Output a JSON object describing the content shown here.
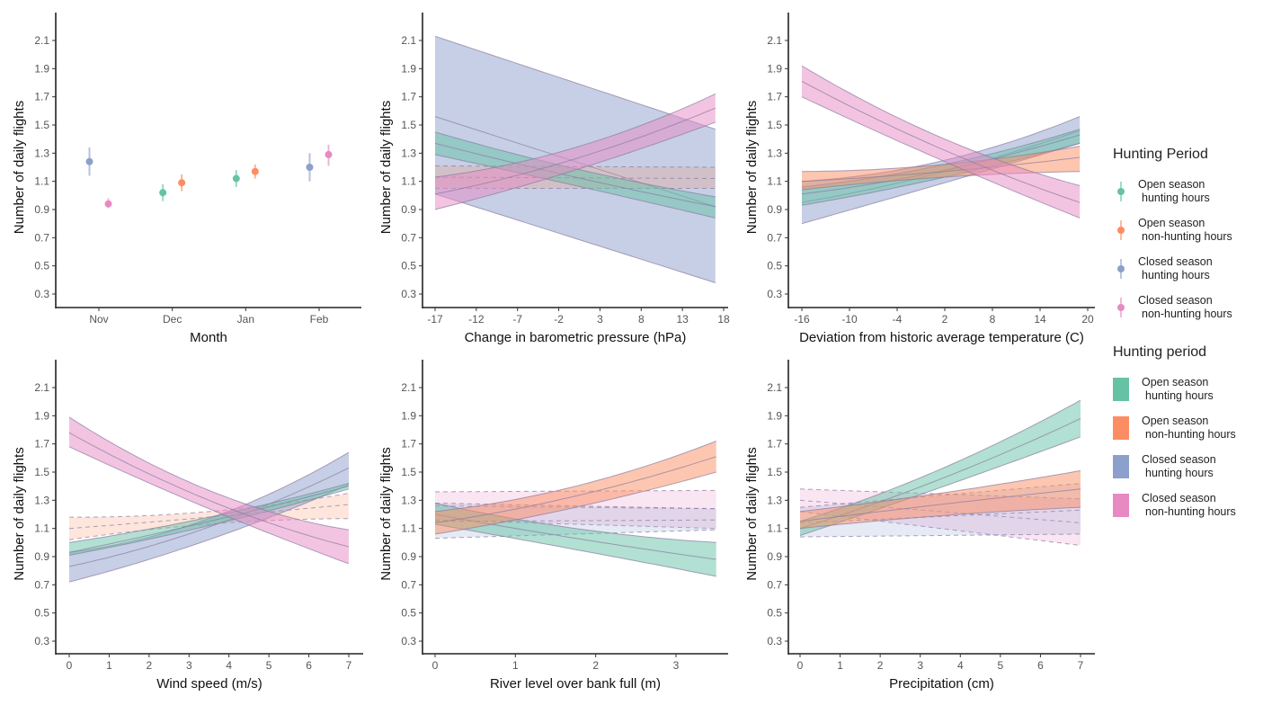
{
  "colors": {
    "open_hunting": "#66c2a5",
    "open_nonhunting": "#fc8d62",
    "closed_hunting": "#8da0cb",
    "closed_nonhunting": "#e78ac3"
  },
  "legends": [
    {
      "title": "Hunting Period",
      "kind": "pointrange",
      "items": [
        {
          "key": "open_hunting",
          "line1": "Open season",
          "line2": "hunting hours"
        },
        {
          "key": "open_nonhunting",
          "line1": "Open season",
          "line2": "non-hunting hours"
        },
        {
          "key": "closed_hunting",
          "line1": "Closed season",
          "line2": "hunting hours"
        },
        {
          "key": "closed_nonhunting",
          "line1": "Closed season",
          "line2": "non-hunting hours"
        }
      ]
    },
    {
      "title": "Hunting period",
      "kind": "fill",
      "items": [
        {
          "key": "open_hunting",
          "line1": "Open season",
          "line2": "hunting hours"
        },
        {
          "key": "open_nonhunting",
          "line1": "Open season",
          "line2": "non-hunting hours"
        },
        {
          "key": "closed_hunting",
          "line1": "Closed season",
          "line2": "hunting hours"
        },
        {
          "key": "closed_nonhunting",
          "line1": "Closed season",
          "line2": "non-hunting hours"
        }
      ]
    }
  ],
  "chart_data": [
    {
      "type": "scatter",
      "xlabel": "Month",
      "ylabel": "Number of daily flights",
      "categories": [
        "Nov",
        "Dec",
        "Jan",
        "Feb"
      ],
      "yticks": [
        "0.3",
        "0.5",
        "0.7",
        "0.9",
        "1.1",
        "1.3",
        "1.5",
        "1.7",
        "1.9",
        "2.1"
      ],
      "points": [
        {
          "category": "Nov",
          "series": "closed_hunting",
          "offset": -1,
          "y": 1.24,
          "lower": 1.14,
          "upper": 1.34
        },
        {
          "category": "Nov",
          "series": "closed_nonhunting",
          "offset": 1,
          "y": 0.94,
          "lower": 0.91,
          "upper": 0.98
        },
        {
          "category": "Dec",
          "series": "open_hunting",
          "offset": -1,
          "y": 1.02,
          "lower": 0.96,
          "upper": 1.08
        },
        {
          "category": "Dec",
          "series": "open_nonhunting",
          "offset": 1,
          "y": 1.09,
          "lower": 1.03,
          "upper": 1.15
        },
        {
          "category": "Jan",
          "series": "open_hunting",
          "offset": -1,
          "y": 1.12,
          "lower": 1.06,
          "upper": 1.18
        },
        {
          "category": "Jan",
          "series": "open_nonhunting",
          "offset": 1,
          "y": 1.17,
          "lower": 1.12,
          "upper": 1.22
        },
        {
          "category": "Feb",
          "series": "closed_hunting",
          "offset": -1,
          "y": 1.2,
          "lower": 1.1,
          "upper": 1.3
        },
        {
          "category": "Feb",
          "series": "closed_nonhunting",
          "offset": 1,
          "y": 1.29,
          "lower": 1.21,
          "upper": 1.36
        }
      ]
    },
    {
      "type": "line",
      "xlabel": "Change in barometric pressure (hPa)",
      "ylabel": "Number of daily flights",
      "xticks": [
        "-17",
        "-12",
        "-7",
        "-2",
        "3",
        "8",
        "13",
        "18"
      ],
      "yticks": [
        "0.3",
        "0.5",
        "0.7",
        "0.9",
        "1.1",
        "1.3",
        "1.5",
        "1.7",
        "1.9",
        "2.1"
      ],
      "series": [
        {
          "key": "closed_hunting",
          "significant": true,
          "x": [
            -17,
            17
          ],
          "mean": [
            1.56,
            0.92
          ],
          "lower": [
            1.01,
            0.38
          ],
          "upper": [
            2.13,
            1.47
          ]
        },
        {
          "key": "open_nonhunting",
          "significant": false,
          "x": [
            -17,
            17
          ],
          "mean": [
            1.13,
            1.12
          ],
          "lower": [
            1.05,
            1.05
          ],
          "upper": [
            1.21,
            1.2
          ]
        },
        {
          "key": "open_hunting",
          "significant": true,
          "x": [
            -17,
            0,
            17
          ],
          "mean": [
            1.37,
            1.13,
            0.92
          ],
          "lower": [
            1.29,
            1.07,
            0.84
          ],
          "upper": [
            1.45,
            1.19,
            0.99
          ]
        },
        {
          "key": "closed_nonhunting",
          "significant": true,
          "x": [
            -17,
            0,
            17
          ],
          "mean": [
            1.01,
            1.26,
            1.62
          ],
          "lower": [
            0.9,
            1.18,
            1.52
          ],
          "upper": [
            1.13,
            1.34,
            1.72
          ]
        }
      ]
    },
    {
      "type": "line",
      "xlabel": "Deviation from historic average temperature (C)",
      "ylabel": "Number of daily flights",
      "xticks": [
        "-16",
        "-10",
        "-4",
        "2",
        "8",
        "14",
        "20"
      ],
      "yticks": [
        "0.3",
        "0.5",
        "0.7",
        "0.9",
        "1.1",
        "1.3",
        "1.5",
        "1.7",
        "1.9",
        "2.1"
      ],
      "series": [
        {
          "key": "closed_hunting",
          "significant": true,
          "x": [
            -16,
            2,
            19
          ],
          "mean": [
            0.95,
            1.17,
            1.46
          ],
          "lower": [
            0.8,
            1.09,
            1.37
          ],
          "upper": [
            1.1,
            1.25,
            1.56
          ]
        },
        {
          "key": "open_hunting",
          "significant": true,
          "x": [
            -16,
            2,
            19
          ],
          "mean": [
            1.01,
            1.18,
            1.43
          ],
          "lower": [
            0.93,
            1.13,
            1.37
          ],
          "upper": [
            1.06,
            1.22,
            1.47
          ]
        },
        {
          "key": "open_nonhunting",
          "significant": true,
          "x": [
            -16,
            2,
            19
          ],
          "mean": [
            1.1,
            1.17,
            1.27
          ],
          "lower": [
            1.04,
            1.13,
            1.17
          ],
          "upper": [
            1.17,
            1.22,
            1.35
          ]
        },
        {
          "key": "closed_nonhunting",
          "significant": true,
          "x": [
            -16,
            2,
            19
          ],
          "mean": [
            1.81,
            1.32,
            0.95
          ],
          "lower": [
            1.7,
            1.24,
            0.84
          ],
          "upper": [
            1.92,
            1.4,
            1.07
          ]
        }
      ]
    },
    {
      "type": "line",
      "xlabel": "Wind speed (m/s)",
      "ylabel": "Number of daily flights",
      "xticks": [
        "0",
        "1",
        "2",
        "3",
        "4",
        "5",
        "6",
        "7"
      ],
      "yticks": [
        "0.3",
        "0.5",
        "0.7",
        "0.9",
        "1.1",
        "1.3",
        "1.5",
        "1.7",
        "1.9",
        "2.1"
      ],
      "series": [
        {
          "key": "open_nonhunting",
          "significant": false,
          "x": [
            0,
            3.5,
            7
          ],
          "mean": [
            1.1,
            1.18,
            1.27
          ],
          "lower": [
            1.02,
            1.13,
            1.17
          ],
          "upper": [
            1.18,
            1.22,
            1.35
          ]
        },
        {
          "key": "closed_hunting",
          "significant": true,
          "x": [
            0,
            3.5,
            7
          ],
          "mean": [
            0.83,
            1.11,
            1.53
          ],
          "lower": [
            0.72,
            1.02,
            1.41
          ],
          "upper": [
            0.93,
            1.17,
            1.64
          ]
        },
        {
          "key": "open_hunting",
          "significant": true,
          "x": [
            0,
            3.5,
            7
          ],
          "mean": [
            0.93,
            1.15,
            1.4
          ],
          "lower": [
            0.91,
            1.12,
            1.38
          ],
          "upper": [
            1.0,
            1.18,
            1.42
          ]
        },
        {
          "key": "closed_nonhunting",
          "significant": true,
          "x": [
            0,
            3.5,
            7
          ],
          "mean": [
            1.78,
            1.3,
            0.97
          ],
          "lower": [
            1.68,
            1.24,
            0.85
          ],
          "upper": [
            1.89,
            1.37,
            1.09
          ]
        }
      ]
    },
    {
      "type": "line",
      "xlabel": "River level over bank full (m)",
      "ylabel": "Number of daily flights",
      "xticks": [
        "0",
        "1",
        "2",
        "3"
      ],
      "yticks": [
        "0.3",
        "0.5",
        "0.7",
        "0.9",
        "1.1",
        "1.3",
        "1.5",
        "1.7",
        "1.9",
        "2.1"
      ],
      "series": [
        {
          "key": "closed_nonhunting",
          "significant": false,
          "x": [
            0,
            3.5
          ],
          "mean": [
            1.26,
            1.24
          ],
          "lower": [
            1.16,
            1.1
          ],
          "upper": [
            1.36,
            1.37
          ]
        },
        {
          "key": "closed_hunting",
          "significant": false,
          "x": [
            0,
            3.5
          ],
          "mean": [
            1.15,
            1.16
          ],
          "lower": [
            1.03,
            1.09
          ],
          "upper": [
            1.28,
            1.24
          ]
        },
        {
          "key": "open_hunting",
          "significant": true,
          "x": [
            0,
            1.75,
            3.5
          ],
          "mean": [
            1.2,
            1.03,
            0.88
          ],
          "lower": [
            1.13,
            0.95,
            0.76
          ],
          "upper": [
            1.28,
            1.1,
            1.0
          ]
        },
        {
          "key": "open_nonhunting",
          "significant": true,
          "x": [
            0,
            1.75,
            3.5
          ],
          "mean": [
            1.14,
            1.33,
            1.61
          ],
          "lower": [
            1.06,
            1.25,
            1.5
          ],
          "upper": [
            1.22,
            1.4,
            1.72
          ]
        }
      ]
    },
    {
      "type": "line",
      "xlabel": "Precipitation (cm)",
      "ylabel": "Number of daily flights",
      "xticks": [
        "0",
        "1",
        "2",
        "3",
        "4",
        "5",
        "6",
        "7"
      ],
      "yticks": [
        "0.3",
        "0.5",
        "0.7",
        "0.9",
        "1.1",
        "1.3",
        "1.5",
        "1.7",
        "1.9",
        "2.1"
      ],
      "series": [
        {
          "key": "closed_nonhunting",
          "significant": false,
          "x": [
            0,
            7
          ],
          "mean": [
            1.3,
            1.14
          ],
          "lower": [
            1.22,
            0.98
          ],
          "upper": [
            1.38,
            1.31
          ]
        },
        {
          "key": "closed_hunting",
          "significant": false,
          "x": [
            0,
            7
          ],
          "mean": [
            1.14,
            1.23
          ],
          "lower": [
            1.04,
            1.06
          ],
          "upper": [
            1.25,
            1.42
          ]
        },
        {
          "key": "green_placeholder_none",
          "significant": true,
          "x": [],
          "mean": [],
          "lower": [],
          "upper": []
        },
        {
          "key": "open_hunting",
          "significant": true,
          "x": [
            0,
            3.5,
            7
          ],
          "mean": [
            1.1,
            1.45,
            1.88
          ],
          "lower": [
            1.05,
            1.39,
            1.75
          ],
          "upper": [
            1.15,
            1.52,
            2.01
          ]
        },
        {
          "key": "open_nonhunting",
          "significant": true,
          "x": [
            0,
            3.5,
            7
          ],
          "mean": [
            1.15,
            1.27,
            1.38
          ],
          "lower": [
            1.1,
            1.19,
            1.25
          ],
          "upper": [
            1.22,
            1.35,
            1.51
          ]
        }
      ]
    }
  ]
}
